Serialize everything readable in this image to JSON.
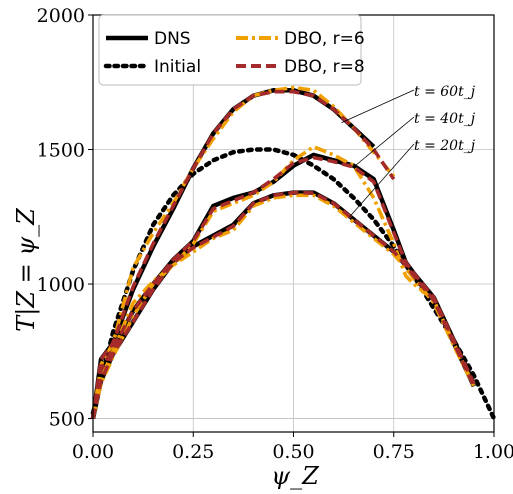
{
  "chart_data": {
    "type": "line",
    "xlabel": "ψ_Z",
    "ylabel": "T|Z = ψ_Z",
    "xlim": [
      0.0,
      1.0
    ],
    "ylim": [
      450,
      2000
    ],
    "xticks": [
      0.0,
      0.25,
      0.5,
      0.75,
      1.0
    ],
    "xtick_labels": [
      "0.00",
      "0.25",
      "0.50",
      "0.75",
      "1.00"
    ],
    "yticks": [
      500,
      1000,
      1500,
      2000
    ],
    "ytick_labels": [
      "500",
      "1000",
      "1500",
      "2000"
    ],
    "grid": true,
    "legend_position": "top-left",
    "legend": [
      {
        "label": "DNS",
        "color": "#000000",
        "style": "solid"
      },
      {
        "label": "Initial",
        "color": "#000000",
        "style": "dotted"
      },
      {
        "label": "DBO, r=6",
        "color": "#f0a000",
        "style": "dashdot"
      },
      {
        "label": "DBO, r=8",
        "color": "#a52a2a",
        "style": "dashed"
      }
    ],
    "annotations": [
      "t = 60t_j",
      "t = 40t_j",
      "t = 20t_j"
    ],
    "series": [
      {
        "name": "Initial",
        "style": "dotted",
        "color": "#000000",
        "x": [
          0.0,
          0.05,
          0.1,
          0.15,
          0.2,
          0.25,
          0.3,
          0.35,
          0.4,
          0.45,
          0.5,
          0.55,
          0.6,
          0.65,
          0.7,
          0.75,
          0.8,
          0.85,
          0.9,
          0.95,
          1.0
        ],
        "y": [
          520,
          820,
          1050,
          1220,
          1330,
          1410,
          1460,
          1490,
          1500,
          1500,
          1480,
          1440,
          1390,
          1320,
          1240,
          1140,
          1030,
          910,
          790,
          660,
          500
        ]
      },
      {
        "name": "DNS t20",
        "style": "solid",
        "color": "#000000",
        "x": [
          0.0,
          0.02,
          0.05,
          0.1,
          0.15,
          0.2,
          0.25,
          0.3,
          0.35,
          0.4,
          0.45,
          0.5,
          0.55,
          0.6,
          0.65,
          0.7,
          0.75,
          0.78,
          0.8,
          0.85,
          0.9,
          0.95
        ],
        "y": [
          500,
          640,
          740,
          860,
          980,
          1080,
          1140,
          1180,
          1220,
          1300,
          1330,
          1340,
          1340,
          1300,
          1240,
          1180,
          1120,
          1070,
          1030,
          940,
          780,
          620
        ]
      },
      {
        "name": "DBO r6 t20",
        "style": "dashdot",
        "color": "#f0a000",
        "x": [
          0.0,
          0.02,
          0.05,
          0.1,
          0.15,
          0.2,
          0.25,
          0.3,
          0.35,
          0.4,
          0.45,
          0.5,
          0.55,
          0.6,
          0.65,
          0.7,
          0.75,
          0.78,
          0.8,
          0.85,
          0.9,
          0.95
        ],
        "y": [
          500,
          630,
          730,
          880,
          1000,
          1070,
          1120,
          1170,
          1200,
          1290,
          1320,
          1330,
          1330,
          1290,
          1230,
          1170,
          1110,
          1060,
          1020,
          930,
          770,
          620
        ]
      },
      {
        "name": "DBO r8 t20",
        "style": "dashed",
        "color": "#a52a2a",
        "x": [
          0.0,
          0.02,
          0.05,
          0.1,
          0.15,
          0.2,
          0.25,
          0.3,
          0.35,
          0.4,
          0.45,
          0.5,
          0.55,
          0.6,
          0.65,
          0.7,
          0.75,
          0.78,
          0.8,
          0.85,
          0.9,
          0.95
        ],
        "y": [
          500,
          640,
          740,
          860,
          980,
          1080,
          1135,
          1175,
          1215,
          1300,
          1330,
          1340,
          1338,
          1300,
          1240,
          1180,
          1120,
          1070,
          1030,
          940,
          780,
          620
        ]
      },
      {
        "name": "DNS t40",
        "style": "solid",
        "color": "#000000",
        "x": [
          0.0,
          0.02,
          0.05,
          0.1,
          0.15,
          0.2,
          0.25,
          0.3,
          0.35,
          0.4,
          0.45,
          0.5,
          0.55,
          0.6,
          0.65,
          0.7,
          0.75,
          0.78,
          0.8,
          0.85,
          0.9,
          0.95
        ],
        "y": [
          500,
          680,
          760,
          900,
          1000,
          1090,
          1160,
          1290,
          1320,
          1340,
          1380,
          1440,
          1480,
          1460,
          1440,
          1390,
          1200,
          1080,
          1040,
          950,
          790,
          630
        ]
      },
      {
        "name": "DBO r6 t40",
        "style": "dashdot",
        "color": "#f0a000",
        "x": [
          0.0,
          0.02,
          0.05,
          0.1,
          0.15,
          0.2,
          0.25,
          0.3,
          0.35,
          0.4,
          0.45,
          0.5,
          0.55,
          0.6,
          0.65,
          0.7,
          0.75,
          0.78,
          0.8,
          0.85,
          0.9,
          0.95
        ],
        "y": [
          500,
          650,
          750,
          930,
          1010,
          1070,
          1150,
          1270,
          1300,
          1330,
          1380,
          1460,
          1510,
          1480,
          1440,
          1320,
          1150,
          1030,
          1000,
          940,
          780,
          620
        ]
      },
      {
        "name": "DBO r8 t40",
        "style": "dashed",
        "color": "#a52a2a",
        "x": [
          0.0,
          0.02,
          0.05,
          0.1,
          0.15,
          0.2,
          0.25,
          0.3,
          0.35,
          0.4,
          0.45,
          0.5,
          0.55,
          0.6,
          0.65,
          0.7,
          0.75,
          0.78,
          0.8,
          0.85,
          0.9,
          0.95
        ],
        "y": [
          500,
          680,
          760,
          900,
          1000,
          1090,
          1160,
          1280,
          1310,
          1340,
          1390,
          1450,
          1470,
          1455,
          1435,
          1380,
          1190,
          1080,
          1040,
          950,
          790,
          630
        ]
      },
      {
        "name": "DNS t60",
        "style": "solid",
        "color": "#000000",
        "x": [
          0.0,
          0.02,
          0.05,
          0.1,
          0.15,
          0.2,
          0.25,
          0.3,
          0.35,
          0.4,
          0.45,
          0.5,
          0.55,
          0.6,
          0.65,
          0.7
        ],
        "y": [
          500,
          720,
          780,
          980,
          1140,
          1280,
          1430,
          1560,
          1650,
          1700,
          1720,
          1720,
          1700,
          1650,
          1580,
          1510
        ]
      },
      {
        "name": "DBO r6 t60",
        "style": "dashdot",
        "color": "#f0a000",
        "x": [
          0.0,
          0.02,
          0.05,
          0.1,
          0.15,
          0.2,
          0.25,
          0.3,
          0.35,
          0.4,
          0.45,
          0.5,
          0.55,
          0.6,
          0.65,
          0.7,
          0.75
        ],
        "y": [
          500,
          700,
          780,
          1060,
          1190,
          1300,
          1430,
          1540,
          1640,
          1700,
          1720,
          1730,
          1720,
          1660,
          1580,
          1490,
          1400
        ]
      },
      {
        "name": "DBO r8 t60",
        "style": "dashed",
        "color": "#a52a2a",
        "x": [
          0.0,
          0.02,
          0.05,
          0.1,
          0.15,
          0.2,
          0.25,
          0.3,
          0.35,
          0.4,
          0.45,
          0.5,
          0.55,
          0.6,
          0.65,
          0.7,
          0.75
        ],
        "y": [
          500,
          720,
          780,
          990,
          1150,
          1290,
          1430,
          1560,
          1650,
          1700,
          1715,
          1715,
          1700,
          1650,
          1580,
          1500,
          1390
        ]
      }
    ]
  }
}
